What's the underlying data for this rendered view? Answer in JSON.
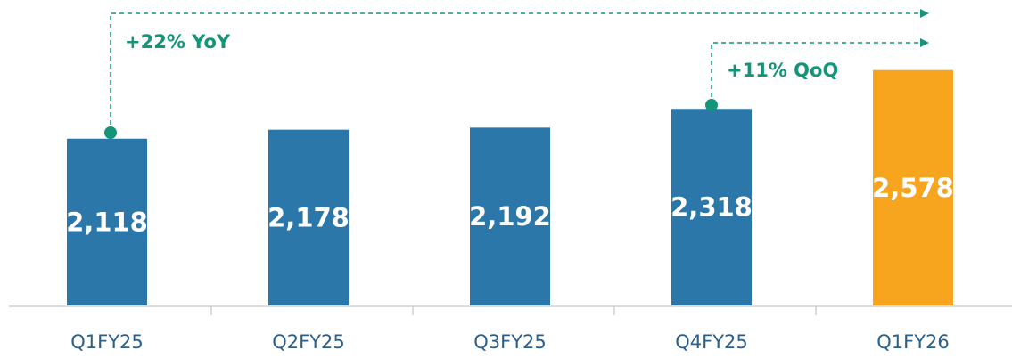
{
  "chart_data": {
    "type": "bar",
    "categories": [
      "Q1FY25",
      "Q2FY25",
      "Q3FY25",
      "Q4FY25",
      "Q1FY26"
    ],
    "values": [
      2118,
      2178,
      2192,
      2318,
      2578
    ],
    "value_labels": [
      "2,118",
      "2,178",
      "2,192",
      "2,318",
      "2,578"
    ],
    "colors": [
      "#2b77aa",
      "#2b77aa",
      "#2b77aa",
      "#2b77aa",
      "#f7a51e"
    ],
    "ylim": [
      1000,
      3000
    ],
    "annotations": [
      "+22% YoY",
      "+11% QoQ"
    ],
    "annotation_color": "#13957a"
  }
}
